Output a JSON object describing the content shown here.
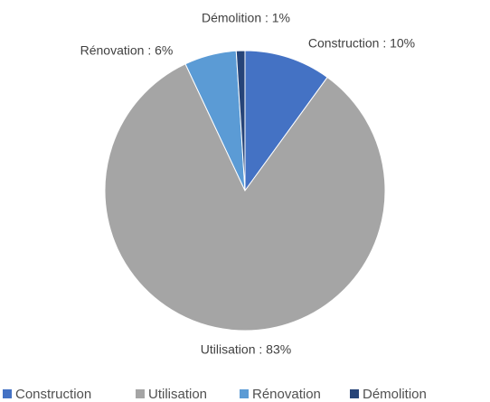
{
  "chart_data": {
    "type": "pie",
    "categories": [
      "Construction",
      "Utilisation",
      "Rénovation",
      "Démolition"
    ],
    "values": [
      10,
      83,
      6,
      1
    ],
    "value_labels": [
      "Construction : 10%",
      "Utilisation : 83%",
      "Rénovation : 6%",
      "Démolition : 1%"
    ],
    "colors": [
      "#4472c4",
      "#a5a5a5",
      "#5b9bd5",
      "#264478"
    ],
    "legend": "bottom"
  }
}
